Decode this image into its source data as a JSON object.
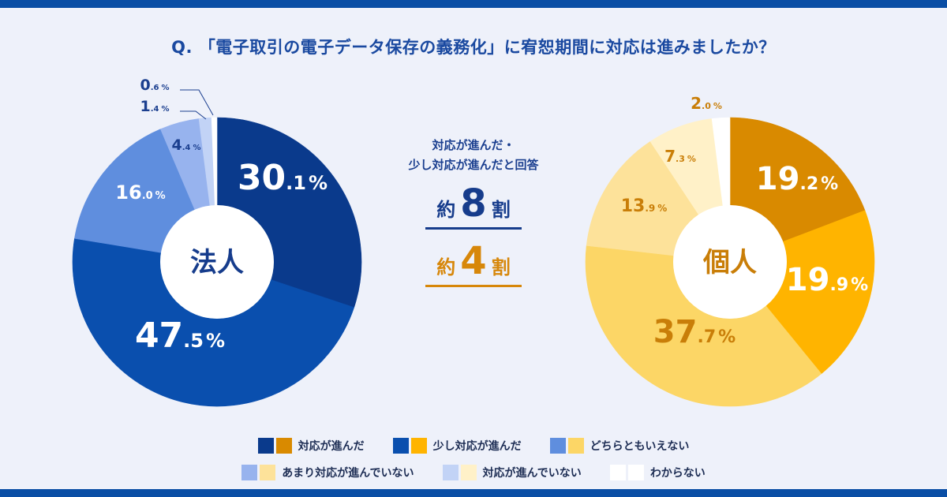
{
  "question": "Q. 「電子取引の電子データ保存の義務化」に宥恕期間に対応は進みましたか？",
  "center": {
    "caption_line1": "対応が進んだ・",
    "caption_line2": "少し対応が進んだと回答",
    "corporate_prefix": "約",
    "corporate_value": "8",
    "corporate_suffix": "割",
    "individual_prefix": "約",
    "individual_value": "4",
    "individual_suffix": "割"
  },
  "chart_data": [
    {
      "type": "pie",
      "title": "法人",
      "categories": [
        "対応が進んだ",
        "少し対応が進んだ",
        "どちらともいえない",
        "あまり対応が進んでいない",
        "対応が進んでいない",
        "わからない"
      ],
      "values": [
        30.1,
        47.5,
        16.0,
        4.4,
        1.4,
        0.6
      ],
      "labels": [
        "30.1%",
        "47.5%",
        "16.0%",
        "4.4%",
        "1.4%",
        "0.6%"
      ],
      "colors": [
        "#0a3a8c",
        "#0a4fae",
        "#5f8ede",
        "#97b3ee",
        "#c2d3f6",
        "#ffffff"
      ],
      "label_colors": [
        "#ffffff",
        "#ffffff",
        "#ffffff",
        "#1b3f8f",
        "#1b3f8f",
        "#1b3f8f"
      ]
    },
    {
      "type": "pie",
      "title": "個人",
      "categories": [
        "対応が進んだ",
        "少し対応が進んだ",
        "どちらともいえない",
        "あまり対応が進んでいない",
        "対応が進んでいない",
        "わからない"
      ],
      "values": [
        19.2,
        19.9,
        37.7,
        13.9,
        7.3,
        2.0
      ],
      "labels": [
        "19.2%",
        "19.9%",
        "37.7%",
        "13.9%",
        "7.3%",
        "2.0%"
      ],
      "colors": [
        "#d98a00",
        "#ffb400",
        "#fcd666",
        "#fde29a",
        "#fff1c8",
        "#ffffff"
      ],
      "label_colors": [
        "#ffffff",
        "#ffffff",
        "#c97e08",
        "#c97e08",
        "#c97e08",
        "#c97e08"
      ]
    }
  ],
  "legend": {
    "items": [
      {
        "label": "対応が進んだ",
        "corp_color": "#0a3a8c",
        "ind_color": "#d98a00"
      },
      {
        "label": "少し対応が進んだ",
        "corp_color": "#0a4fae",
        "ind_color": "#ffb400"
      },
      {
        "label": "どちらともいえない",
        "corp_color": "#5f8ede",
        "ind_color": "#fcd666"
      },
      {
        "label": "あまり対応が進んでいない",
        "corp_color": "#97b3ee",
        "ind_color": "#fde29a"
      },
      {
        "label": "対応が進んでいない",
        "corp_color": "#c2d3f6",
        "ind_color": "#fff1c8"
      },
      {
        "label": "わからない",
        "corp_color": "#ffffff",
        "ind_color": "#ffffff"
      }
    ]
  }
}
